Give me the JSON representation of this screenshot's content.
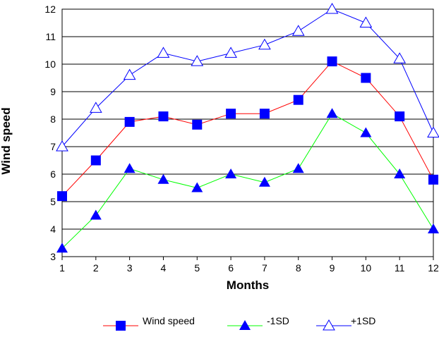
{
  "chart_data": {
    "type": "line",
    "xlabel": "Months",
    "ylabel": "Wind speed",
    "x": [
      1,
      2,
      3,
      4,
      5,
      6,
      7,
      8,
      9,
      10,
      11,
      12
    ],
    "ylim": [
      3,
      12
    ],
    "yticks": [
      3,
      4,
      5,
      6,
      7,
      8,
      9,
      10,
      11,
      12
    ],
    "grid": "horizontal",
    "legend_position": "bottom",
    "series": [
      {
        "name": "Wind speed",
        "color": "#ff0000",
        "marker": "square-filled",
        "values": [
          5.2,
          6.5,
          7.9,
          8.1,
          7.8,
          8.2,
          8.2,
          8.7,
          10.1,
          9.5,
          8.1,
          5.8
        ]
      },
      {
        "name": "-1SD",
        "color": "#00ff00",
        "marker": "triangle-filled",
        "values": [
          3.3,
          4.5,
          6.2,
          5.8,
          5.5,
          6.0,
          5.7,
          6.2,
          8.2,
          7.5,
          6.0,
          4.0
        ]
      },
      {
        "name": "+1SD",
        "color": "#0000ff",
        "marker": "triangle-open",
        "values": [
          7.0,
          8.4,
          9.6,
          10.4,
          10.1,
          10.4,
          10.7,
          11.2,
          12.0,
          11.5,
          10.2,
          7.5
        ]
      }
    ]
  }
}
